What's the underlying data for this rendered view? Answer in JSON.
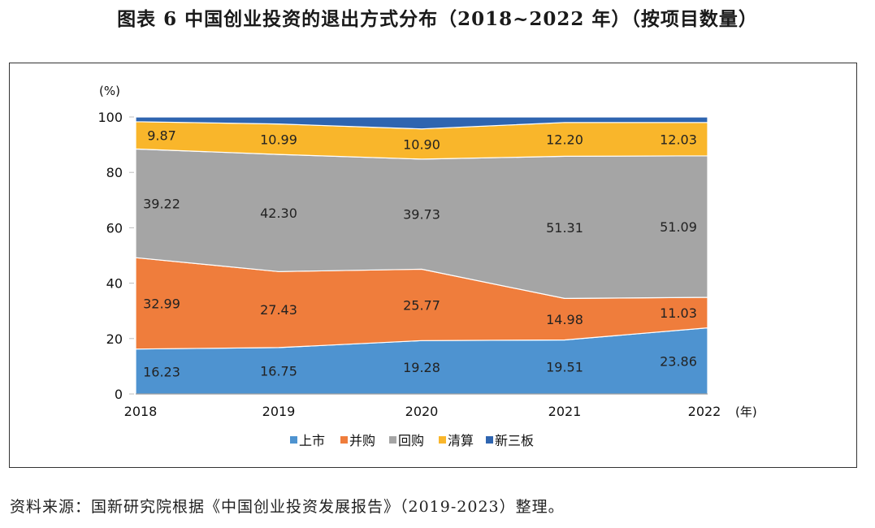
{
  "title": "图表 6  中国创业投资的退出方式分布（2018~2022 年）（按项目数量）",
  "source": "资料来源：国新研究院根据《中国创业投资发展报告》（2019-2023）整理。",
  "chart_data": {
    "type": "area",
    "stacked": true,
    "categories": [
      "2018",
      "2019",
      "2020",
      "2021",
      "2022"
    ],
    "y_unit": "(%)",
    "x_unit": "(年)",
    "ylim": [
      0,
      100
    ],
    "yticks": [
      "0",
      "20",
      "40",
      "60",
      "80",
      "100"
    ],
    "legend_position": "bottom",
    "grid": false,
    "series": [
      {
        "name": "上市",
        "color": "#4e93d0",
        "values": [
          16.23,
          16.75,
          19.28,
          19.51,
          23.86
        ],
        "labels": [
          "16.23",
          "16.75",
          "19.28",
          "19.51",
          "23.86"
        ]
      },
      {
        "name": "并购",
        "color": "#ef7d3c",
        "values": [
          32.99,
          27.43,
          25.77,
          14.98,
          11.03
        ],
        "labels": [
          "32.99",
          "27.43",
          "25.77",
          "14.98",
          "11.03"
        ]
      },
      {
        "name": "回购",
        "color": "#a5a5a5",
        "values": [
          39.22,
          42.3,
          39.73,
          51.31,
          51.09
        ],
        "labels": [
          "39.22",
          "42.30",
          "39.73",
          "51.31",
          "51.09"
        ]
      },
      {
        "name": "清算",
        "color": "#f9b62b",
        "values": [
          9.87,
          10.99,
          10.9,
          12.2,
          12.03
        ],
        "labels": [
          "9.87",
          "10.99",
          "10.90",
          "12.20",
          "12.03"
        ]
      },
      {
        "name": "新三板",
        "color": "#2f65b0",
        "values": [
          1.69,
          2.53,
          4.32,
          2.0,
          1.99
        ],
        "labels": []
      }
    ]
  }
}
